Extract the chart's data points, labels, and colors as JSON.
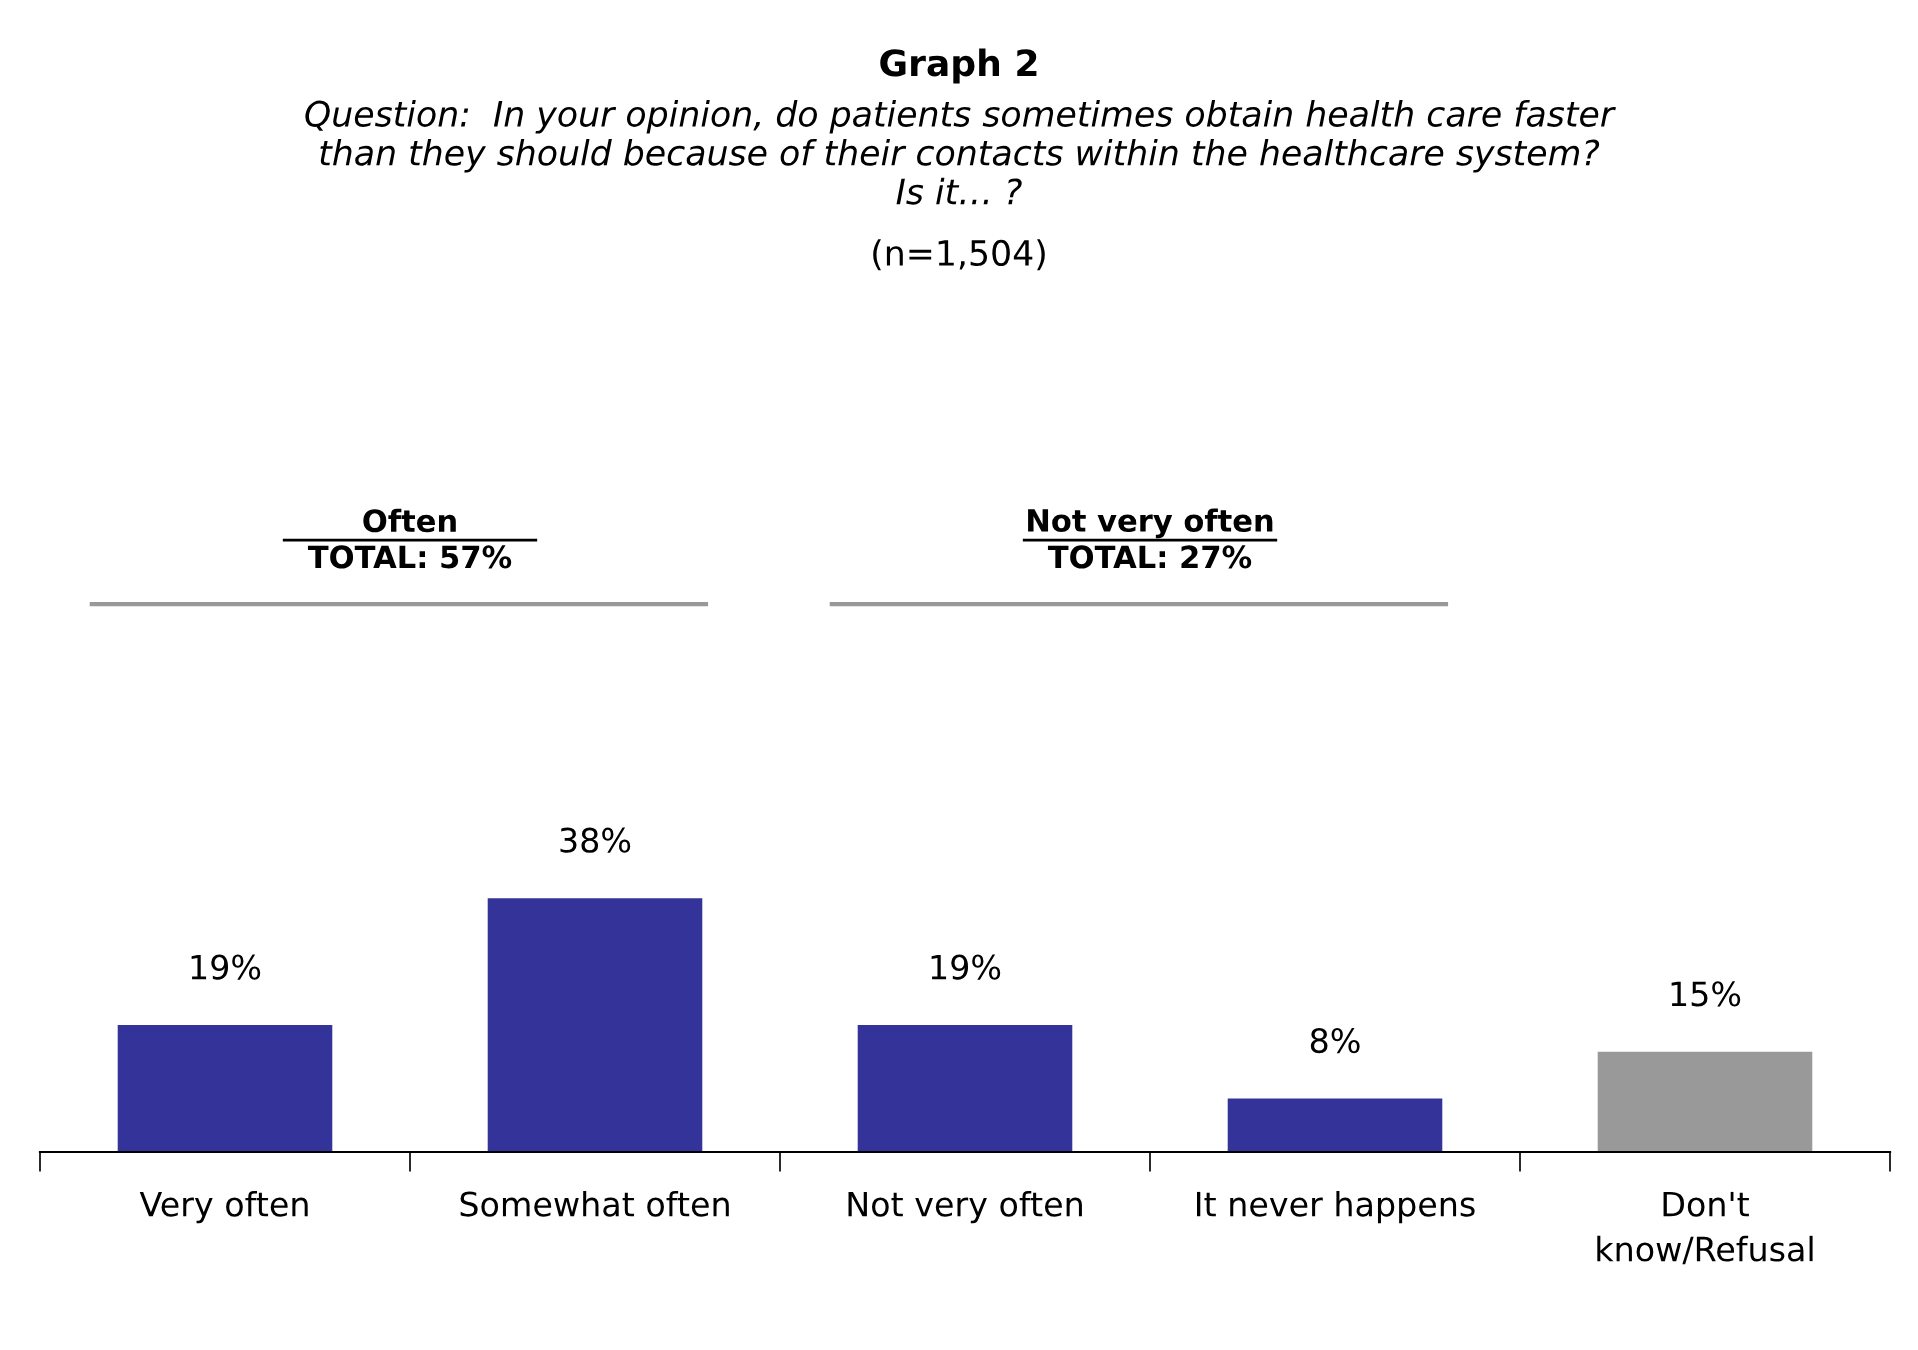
{
  "chart_data": {
    "type": "bar",
    "title": "Graph 2",
    "subtitle": "Question:  In your opinion, do patients sometimes obtain health care faster\nthan they should because of their contacts within the healthcare system?\nIs it… ?",
    "annotations": [
      "(n=1,504)",
      "Often",
      "TOTAL: 57%",
      "Not very often",
      "TOTAL: 27%"
    ],
    "categories": [
      "Very often",
      "Somewhat often",
      "Not very often",
      "It never happens",
      "Don't\nknow/Refusal"
    ],
    "values": [
      19,
      38,
      19,
      8,
      15
    ],
    "colors": [
      "#333399",
      "#333399",
      "#333399",
      "#333399",
      "#999999"
    ],
    "value_labels": [
      "19%",
      "38%",
      "19%",
      "8%",
      "15%"
    ],
    "grid": false
  }
}
